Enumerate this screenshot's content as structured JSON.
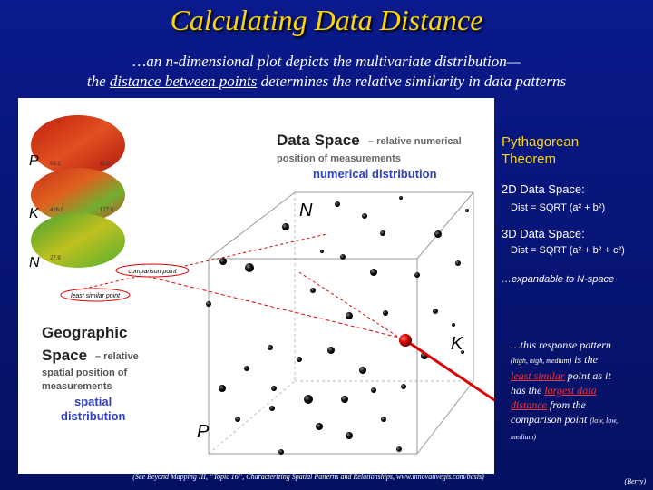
{
  "title": "Calculating Data Distance",
  "subtitle": {
    "line1": "…an n-dimensional plot depicts the multivariate distribution—",
    "line2_before": "the ",
    "line2_link": "distance between points",
    "line2_after": " determines the relative similarity in data patterns"
  },
  "figure": {
    "data_space": {
      "heading": "Data Space",
      "desc1": "– relative numerical",
      "desc2": "position of measurements",
      "subhead": "numerical distribution"
    },
    "geographic_space": {
      "heading1": "Geographic",
      "heading2": "Space",
      "desc1": "– relative",
      "desc2": "spatial position of",
      "desc3": "measurements",
      "subhead1": "spatial",
      "subhead2": "distribution"
    },
    "axes": {
      "n": "N",
      "k": "K",
      "p": "P"
    },
    "map_labels": {
      "p": "P",
      "k": "K",
      "n": "N"
    },
    "map_values": [
      "59.2",
      "11.0",
      "416.0",
      "177.0",
      "27.9"
    ],
    "comparison_label": "comparison point",
    "least_similar_label": "least similar point"
  },
  "sidebar": {
    "heading1": "Pythagorean",
    "heading2": "Theorem",
    "d2_label": "2D Data Space:",
    "d2_formula": "Dist = SQRT (a² + b²)",
    "d3_label": "3D Data Space:",
    "d3_formula": "Dist = SQRT (a² + b² + c²)",
    "expand": "…expandable to N-space",
    "note": {
      "p1": "…this response pattern ",
      "p2": "(high, high, medium)",
      "p3": " is the ",
      "p4": "least similar",
      "p5": " point as it has the ",
      "p6": "largest data distance",
      "p7": " from the comparison point ",
      "p8": "(low, low, medium)"
    }
  },
  "footer": {
    "citation": "(See Beyond Mapping III, “Topic 16”, Characterizing Spatial Patterns and Relationships, www.innovativegis.com/basis)",
    "author": "(Berry)"
  }
}
